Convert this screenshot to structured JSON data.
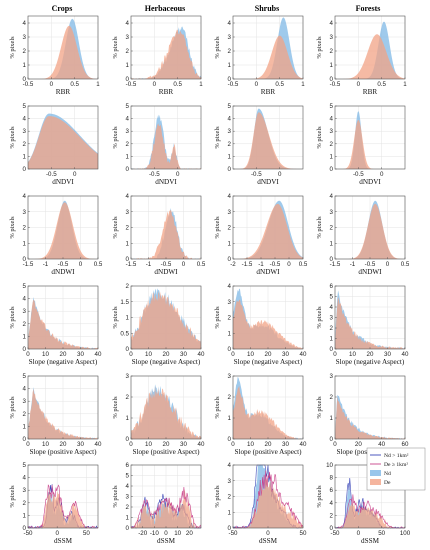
{
  "figure": {
    "columns": [
      "Crops",
      "Herbaceous",
      "Shrubs",
      "Forests"
    ],
    "ylabel": "% pixels",
    "legend": [
      "Nd > 1km²",
      "De ≥ 1km²",
      "Nd",
      "De"
    ],
    "colors": {
      "nd_fill": "#7fb8e6",
      "de_fill": "#f2a386",
      "nd_line": "#3a46b8",
      "de_line": "#c8428a",
      "grid": "#e3e3e3",
      "axis": "#555555"
    }
  },
  "chart_data": [
    {
      "type": "area",
      "row": 0,
      "col": 0,
      "xlabel": "RBR",
      "xlim": [
        -0.5,
        1
      ],
      "ylim": [
        0,
        4.5
      ],
      "xticks": [
        -0.5,
        0,
        0.5,
        1
      ],
      "yticks": [
        0,
        1,
        2,
        3,
        4
      ],
      "series": [
        {
          "name": "Nd",
          "kind": "gauss",
          "mu": 0.45,
          "sigma": 0.14,
          "amp": 4.3
        },
        {
          "name": "De",
          "kind": "gauss",
          "mu": 0.38,
          "sigma": 0.17,
          "amp": 3.8
        }
      ]
    },
    {
      "type": "area",
      "row": 0,
      "col": 1,
      "xlabel": "RBR",
      "xlim": [
        -0.5,
        1
      ],
      "ylim": [
        0,
        4.5
      ],
      "xticks": [
        -0.5,
        0,
        0.5,
        1
      ],
      "yticks": [
        0,
        1,
        2,
        3,
        4
      ],
      "series": [
        {
          "name": "Nd",
          "kind": "gauss",
          "mu": 0.58,
          "sigma": 0.16,
          "amp": 3.6,
          "skew": -1.5,
          "noise": 0.25
        },
        {
          "name": "De",
          "kind": "gauss",
          "mu": 0.55,
          "sigma": 0.17,
          "amp": 3.4,
          "skew": -1.5,
          "noise": 0.25
        }
      ]
    },
    {
      "type": "area",
      "row": 0,
      "col": 2,
      "xlabel": "RBR",
      "xlim": [
        -0.5,
        1
      ],
      "ylim": [
        0,
        4.5
      ],
      "xticks": [
        -0.5,
        0,
        0.5,
        1
      ],
      "yticks": [
        0,
        1,
        2,
        3,
        4
      ],
      "series": [
        {
          "name": "Nd",
          "kind": "gauss",
          "mu": 0.58,
          "sigma": 0.13,
          "amp": 4.4
        },
        {
          "name": "De",
          "kind": "gauss",
          "mu": 0.5,
          "sigma": 0.17,
          "amp": 3.1
        }
      ]
    },
    {
      "type": "area",
      "row": 0,
      "col": 3,
      "xlabel": "RBR",
      "xlim": [
        -0.5,
        1
      ],
      "ylim": [
        0,
        4.5
      ],
      "xticks": [
        -0.5,
        0,
        0.5,
        1
      ],
      "yticks": [
        0,
        1,
        2,
        3,
        4
      ],
      "series": [
        {
          "name": "Nd",
          "kind": "gauss",
          "mu": 0.55,
          "sigma": 0.12,
          "amp": 4.1
        },
        {
          "name": "De",
          "kind": "gauss",
          "mu": 0.4,
          "sigma": 0.2,
          "amp": 3.2
        }
      ]
    },
    {
      "type": "area",
      "row": 1,
      "col": 0,
      "xlabel": "dNDVI",
      "xlim": [
        -1,
        0.5
      ],
      "ylim": [
        0,
        5
      ],
      "xticks": [
        -0.5,
        0
      ],
      "yticks": [
        0,
        1,
        2,
        3,
        4,
        5
      ],
      "series": [
        {
          "name": "Nd",
          "kind": "gauss",
          "mu": -0.55,
          "sigma": 0.22,
          "amp": 4.4,
          "skew": 3
        },
        {
          "name": "De",
          "kind": "gauss",
          "mu": -0.55,
          "sigma": 0.22,
          "amp": 4.2,
          "skew": 3
        }
      ]
    },
    {
      "type": "area",
      "row": 1,
      "col": 1,
      "xlabel": "dNDVI",
      "xlim": [
        -1,
        0.5
      ],
      "ylim": [
        0,
        5
      ],
      "xticks": [
        -0.5,
        0
      ],
      "yticks": [
        0,
        1,
        2,
        3,
        4,
        5
      ],
      "series": [
        {
          "name": "Nd",
          "kind": "bimodal",
          "mu": -0.4,
          "sigma": 0.1,
          "amp": 4.3,
          "mu2": -0.08,
          "sigma2": 0.05,
          "amp2": 1.8,
          "noise": 0.3
        },
        {
          "name": "De",
          "kind": "bimodal",
          "mu": -0.4,
          "sigma": 0.1,
          "amp": 3.6,
          "mu2": -0.08,
          "sigma2": 0.05,
          "amp2": 1.9,
          "noise": 0.3
        }
      ]
    },
    {
      "type": "area",
      "row": 1,
      "col": 2,
      "xlabel": "dNDVI",
      "xlim": [
        -1,
        0.5
      ],
      "ylim": [
        0,
        5
      ],
      "xticks": [
        -0.5,
        0
      ],
      "yticks": [
        0,
        1,
        2,
        3,
        4,
        5
      ],
      "series": [
        {
          "name": "Nd",
          "kind": "gauss",
          "mu": -0.45,
          "sigma": 0.1,
          "amp": 4.8,
          "skew": 2
        },
        {
          "name": "De",
          "kind": "gauss",
          "mu": -0.45,
          "sigma": 0.11,
          "amp": 4.5,
          "skew": 2
        }
      ]
    },
    {
      "type": "area",
      "row": 1,
      "col": 3,
      "xlabel": "dNDVI",
      "xlim": [
        -1,
        0.5
      ],
      "ylim": [
        0,
        5
      ],
      "xticks": [
        -0.5,
        0
      ],
      "yticks": [
        0,
        1,
        2,
        3,
        4,
        5
      ],
      "series": [
        {
          "name": "Nd",
          "kind": "gauss",
          "mu": -0.5,
          "sigma": 0.07,
          "amp": 4.6
        },
        {
          "name": "De",
          "kind": "gauss",
          "mu": -0.5,
          "sigma": 0.09,
          "amp": 3.9
        }
      ]
    },
    {
      "type": "area",
      "row": 2,
      "col": 0,
      "xlabel": "dNDWI",
      "xlim": [
        -1.5,
        0.5
      ],
      "ylim": [
        0,
        4
      ],
      "xticks": [
        -1.5,
        -1,
        -0.5,
        0,
        0.5
      ],
      "yticks": [
        0,
        1,
        2,
        3,
        4
      ],
      "series": [
        {
          "name": "Nd",
          "kind": "gauss",
          "mu": -0.45,
          "sigma": 0.2,
          "amp": 3.7
        },
        {
          "name": "De",
          "kind": "gauss",
          "mu": -0.45,
          "sigma": 0.23,
          "amp": 3.6
        }
      ]
    },
    {
      "type": "area",
      "row": 2,
      "col": 1,
      "xlabel": "dNDWI",
      "xlim": [
        -1.5,
        0.5
      ],
      "ylim": [
        0,
        4
      ],
      "xticks": [
        -1.5,
        -1,
        -0.5,
        0,
        0.5
      ],
      "yticks": [
        0,
        1,
        2,
        3,
        4
      ],
      "series": [
        {
          "name": "Nd",
          "kind": "gauss",
          "mu": -0.35,
          "sigma": 0.17,
          "amp": 3.1,
          "noise": 0.25
        },
        {
          "name": "De",
          "kind": "gauss",
          "mu": -0.4,
          "sigma": 0.2,
          "amp": 2.9,
          "noise": 0.25
        }
      ]
    },
    {
      "type": "area",
      "row": 2,
      "col": 2,
      "xlabel": "dNDWI",
      "xlim": [
        -2,
        0.5
      ],
      "ylim": [
        0,
        4
      ],
      "xticks": [
        -2,
        -1.5,
        -1,
        -0.5,
        0,
        0.5
      ],
      "yticks": [
        0,
        1,
        2,
        3,
        4
      ],
      "series": [
        {
          "name": "Nd",
          "kind": "gauss",
          "mu": -0.35,
          "sigma": 0.32,
          "amp": 3.7,
          "skew": -1.2
        },
        {
          "name": "De",
          "kind": "gauss",
          "mu": -0.4,
          "sigma": 0.33,
          "amp": 3.5,
          "skew": -1.2
        }
      ]
    },
    {
      "type": "area",
      "row": 2,
      "col": 3,
      "xlabel": "dNDWI",
      "xlim": [
        -1.5,
        0.5
      ],
      "ylim": [
        0,
        4
      ],
      "xticks": [
        -1.5,
        -1,
        -0.5,
        0,
        0.5
      ],
      "yticks": [
        0,
        1,
        2,
        3,
        4
      ],
      "series": [
        {
          "name": "Nd",
          "kind": "gauss",
          "mu": -0.35,
          "sigma": 0.2,
          "amp": 3.7
        },
        {
          "name": "De",
          "kind": "gauss",
          "mu": -0.35,
          "sigma": 0.21,
          "amp": 3.5
        }
      ]
    },
    {
      "type": "area",
      "row": 3,
      "col": 0,
      "xlabel": "Slope (negative Aspect)",
      "xlim": [
        0,
        40
      ],
      "ylim": [
        0,
        5
      ],
      "xticks": [
        0,
        10,
        20,
        30,
        40
      ],
      "yticks": [
        0,
        1,
        2,
        3,
        4,
        5
      ],
      "series": [
        {
          "name": "Nd",
          "kind": "decay",
          "peak": 3,
          "amp": 4.2,
          "tau": 8,
          "noise": 0.2
        },
        {
          "name": "De",
          "kind": "decay",
          "peak": 3,
          "amp": 4.0,
          "tau": 8.5,
          "noise": 0.2
        }
      ]
    },
    {
      "type": "area",
      "row": 3,
      "col": 1,
      "xlabel": "Slope (negative Aspect)",
      "xlim": [
        0,
        40
      ],
      "ylim": [
        0,
        2
      ],
      "xticks": [
        0,
        10,
        20,
        30,
        40
      ],
      "yticks": [
        0,
        0.5,
        1,
        1.5,
        2
      ],
      "series": [
        {
          "name": "Nd",
          "kind": "gauss",
          "mu": 15,
          "sigma": 8,
          "amp": 1.8,
          "skew": 1.5,
          "noise": 0.18
        },
        {
          "name": "De",
          "kind": "gauss",
          "mu": 15,
          "sigma": 8.5,
          "amp": 1.7,
          "skew": 1.5,
          "noise": 0.18
        }
      ]
    },
    {
      "type": "area",
      "row": 3,
      "col": 2,
      "xlabel": "Slope (negative Aspect)",
      "xlim": [
        0,
        40
      ],
      "ylim": [
        0,
        4
      ],
      "xticks": [
        0,
        10,
        20,
        30,
        40
      ],
      "yticks": [
        0,
        1,
        2,
        3,
        4
      ],
      "series": [
        {
          "name": "Nd",
          "kind": "bimodal",
          "mu": 3,
          "sigma": 3,
          "amp": 3.2,
          "mu2": 16,
          "sigma2": 9,
          "amp2": 1.5,
          "noise": 0.15
        },
        {
          "name": "De",
          "kind": "bimodal",
          "mu": 3,
          "sigma": 3,
          "amp": 2.6,
          "mu2": 17,
          "sigma2": 9,
          "amp2": 1.7,
          "noise": 0.15
        }
      ]
    },
    {
      "type": "area",
      "row": 3,
      "col": 3,
      "xlabel": "Slope (negative Aspect)",
      "xlim": [
        0,
        40
      ],
      "ylim": [
        0,
        6
      ],
      "xticks": [
        0,
        10,
        20,
        30,
        40
      ],
      "yticks": [
        0,
        1,
        2,
        3,
        4,
        5,
        6
      ],
      "series": [
        {
          "name": "Nd",
          "kind": "decay",
          "peak": 1.5,
          "amp": 5.3,
          "tau": 7,
          "floor": 1.2,
          "noise": 0.25
        },
        {
          "name": "De",
          "kind": "decay",
          "peak": 1.5,
          "amp": 4.8,
          "tau": 7,
          "floor": 1.3,
          "noise": 0.25
        }
      ]
    },
    {
      "type": "area",
      "row": 4,
      "col": 0,
      "xlabel": "Slope (positive Aspect)",
      "xlim": [
        0,
        40
      ],
      "ylim": [
        0,
        5
      ],
      "xticks": [
        0,
        10,
        20,
        30,
        40
      ],
      "yticks": [
        0,
        1,
        2,
        3,
        4,
        5
      ],
      "series": [
        {
          "name": "Nd",
          "kind": "decay",
          "peak": 3,
          "amp": 4.0,
          "tau": 8,
          "noise": 0.2
        },
        {
          "name": "De",
          "kind": "decay",
          "peak": 3,
          "amp": 3.9,
          "tau": 8.5,
          "noise": 0.2
        }
      ]
    },
    {
      "type": "area",
      "row": 4,
      "col": 1,
      "xlabel": "Slope (positive Aspect)",
      "xlim": [
        0,
        40
      ],
      "ylim": [
        0,
        3
      ],
      "xticks": [
        0,
        10,
        20,
        30,
        40
      ],
      "yticks": [
        0,
        1,
        2,
        3
      ],
      "series": [
        {
          "name": "Nd",
          "kind": "gauss",
          "mu": 15,
          "sigma": 7,
          "amp": 2.4,
          "skew": 1.3,
          "noise": 0.3
        },
        {
          "name": "De",
          "kind": "gauss",
          "mu": 15,
          "sigma": 7.5,
          "amp": 2.3,
          "skew": 1.3,
          "noise": 0.3
        }
      ]
    },
    {
      "type": "area",
      "row": 4,
      "col": 2,
      "xlabel": "Slope (positive Aspect)",
      "xlim": [
        0,
        40
      ],
      "ylim": [
        0,
        3
      ],
      "xticks": [
        0,
        10,
        20,
        30,
        40
      ],
      "yticks": [
        0,
        1,
        2,
        3
      ],
      "series": [
        {
          "name": "Nd",
          "kind": "bimodal",
          "mu": 3,
          "sigma": 2.5,
          "amp": 2.4,
          "mu2": 14,
          "sigma2": 8,
          "amp2": 1.2,
          "noise": 0.15
        },
        {
          "name": "De",
          "kind": "bimodal",
          "mu": 3,
          "sigma": 2.5,
          "amp": 2.0,
          "mu2": 15,
          "sigma2": 8,
          "amp2": 1.3,
          "noise": 0.15
        }
      ]
    },
    {
      "type": "area",
      "row": 4,
      "col": 3,
      "xlabel": "Slope (positive Aspect)",
      "xlim": [
        0,
        60
      ],
      "ylim": [
        0,
        3
      ],
      "xticks": [
        0,
        20,
        40,
        60
      ],
      "yticks": [
        0,
        1,
        2,
        3
      ],
      "series": [
        {
          "name": "Nd",
          "kind": "decay",
          "peak": 2,
          "amp": 2.2,
          "tau": 12,
          "noise": 0.12
        },
        {
          "name": "De",
          "kind": "decay",
          "peak": 2,
          "amp": 2.0,
          "tau": 12,
          "noise": 0.12
        }
      ]
    },
    {
      "type": "area",
      "row": 5,
      "col": 0,
      "xlabel": "dSSM",
      "xlim": [
        -50,
        70
      ],
      "ylim": [
        0,
        5
      ],
      "xticks": [
        -50,
        0,
        50
      ],
      "yticks": [
        0,
        1,
        2,
        3,
        4,
        5
      ],
      "lines": true,
      "series": [
        {
          "name": "Nd",
          "kind": "multi",
          "peaks": [
            [
              -12,
              4,
              3.0
            ],
            [
              3,
              6,
              1.8
            ],
            [
              25,
              6,
              0.9
            ]
          ],
          "noise": 0.5
        },
        {
          "name": "De",
          "kind": "multi",
          "peaks": [
            [
              -15,
              5,
              2.4
            ],
            [
              0,
              8,
              2.5
            ],
            [
              30,
              8,
              1.6
            ]
          ],
          "noise": 0.5
        }
      ]
    },
    {
      "type": "area",
      "row": 5,
      "col": 1,
      "xlabel": "dSSM",
      "xlim": [
        -30,
        30
      ],
      "ylim": [
        0,
        6
      ],
      "xticks": [
        -20,
        -10,
        0,
        10,
        20
      ],
      "yticks": [
        0,
        1,
        2,
        3,
        4,
        5,
        6
      ],
      "lines": true,
      "series": [
        {
          "name": "Nd",
          "kind": "multi",
          "peaks": [
            [
              -18,
              3,
              2.2
            ],
            [
              -2,
              6,
              2.4
            ],
            [
              14,
              4,
              1.6
            ]
          ],
          "noise": 0.8
        },
        {
          "name": "De",
          "kind": "multi",
          "peaks": [
            [
              -18,
              4,
              1.9
            ],
            [
              0,
              7,
              2.2
            ],
            [
              16,
              4,
              2.8
            ]
          ],
          "noise": 0.8
        }
      ]
    },
    {
      "type": "area",
      "row": 5,
      "col": 2,
      "xlabel": "dSSM",
      "xlim": [
        -50,
        50
      ],
      "ylim": [
        0,
        4
      ],
      "xticks": [
        -50,
        0,
        50
      ],
      "yticks": [
        0,
        1,
        2,
        3,
        4
      ],
      "lines": true,
      "series": [
        {
          "name": "Nd",
          "kind": "multi",
          "peaks": [
            [
              -12,
              6,
              3.5
            ],
            [
              0,
              8,
              2.3
            ],
            [
              18,
              8,
              1.1
            ]
          ],
          "noise": 0.4
        },
        {
          "name": "De",
          "kind": "multi",
          "peaks": [
            [
              -8,
              8,
              2.0
            ],
            [
              8,
              10,
              2.2
            ],
            [
              30,
              10,
              0.9
            ]
          ],
          "noise": 0.4
        }
      ]
    },
    {
      "type": "area",
      "row": 5,
      "col": 3,
      "xlabel": "dSSM",
      "xlim": [
        -50,
        100
      ],
      "ylim": [
        0,
        10
      ],
      "xticks": [
        -50,
        0,
        50,
        100
      ],
      "yticks": [
        0,
        2,
        4,
        6,
        8,
        10
      ],
      "lines": true,
      "series": [
        {
          "name": "Nd",
          "kind": "multi",
          "peaks": [
            [
              -20,
              5,
              6.5
            ],
            [
              5,
              10,
              3.5
            ],
            [
              30,
              10,
              1.8
            ]
          ],
          "noise": 0.6
        },
        {
          "name": "De",
          "kind": "multi",
          "peaks": [
            [
              -15,
              8,
              3.5
            ],
            [
              15,
              15,
              3.2
            ],
            [
              45,
              12,
              1.5
            ]
          ],
          "noise": 0.6
        }
      ]
    }
  ]
}
